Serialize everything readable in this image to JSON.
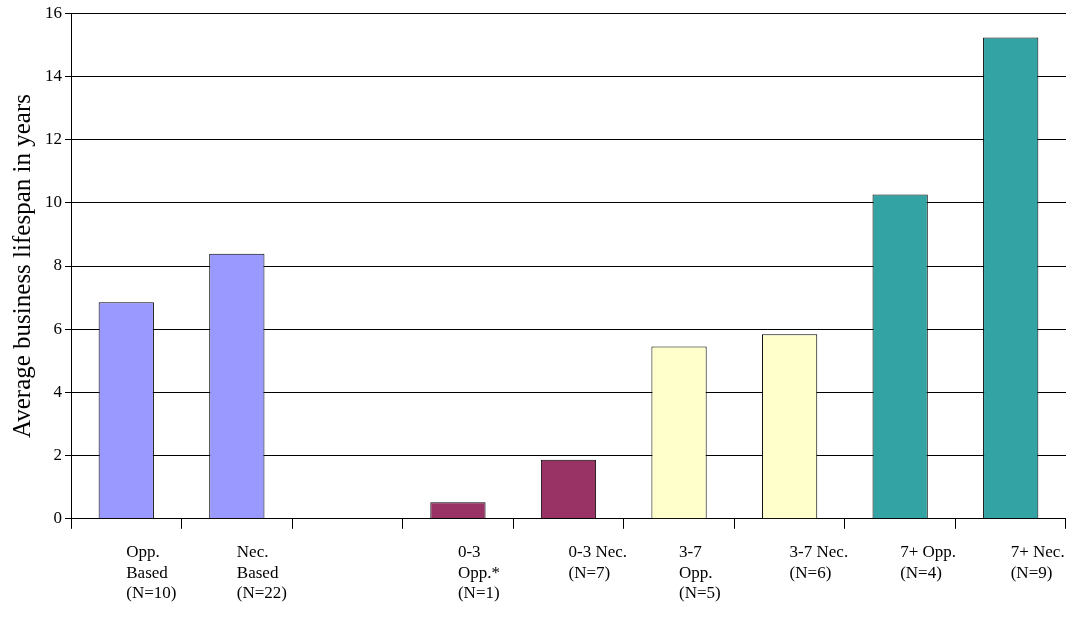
{
  "chart_data": {
    "type": "bar",
    "ylabel": "Average business lifespan in years",
    "categories": [
      "Opp.\nBased\n(N=10)",
      "Nec.\nBased\n(N=22)",
      null,
      "0-3\nOpp.*\n(N=1)",
      "0-3 Nec.\n(N=7)",
      "3-7\nOpp.\n(N=5)",
      "3-7 Nec.\n(N=6)",
      "7+ Opp.\n(N=4)",
      "7+ Nec.\n(N=9)"
    ],
    "values": [
      6.85,
      8.39,
      null,
      0.52,
      1.87,
      5.45,
      5.84,
      10.26,
      15.23
    ],
    "colors": [
      "#9999ff",
      "#9999ff",
      "#9999ff",
      "#993366",
      "#993366",
      "#ffffcc",
      "#ffffcc",
      "#33a3a3",
      "#33a3a3"
    ],
    "ylim": [
      0,
      16
    ],
    "yticks": [
      0,
      2,
      4,
      6,
      8,
      10,
      12,
      14,
      16
    ],
    "grid": "y",
    "legend": false
  }
}
